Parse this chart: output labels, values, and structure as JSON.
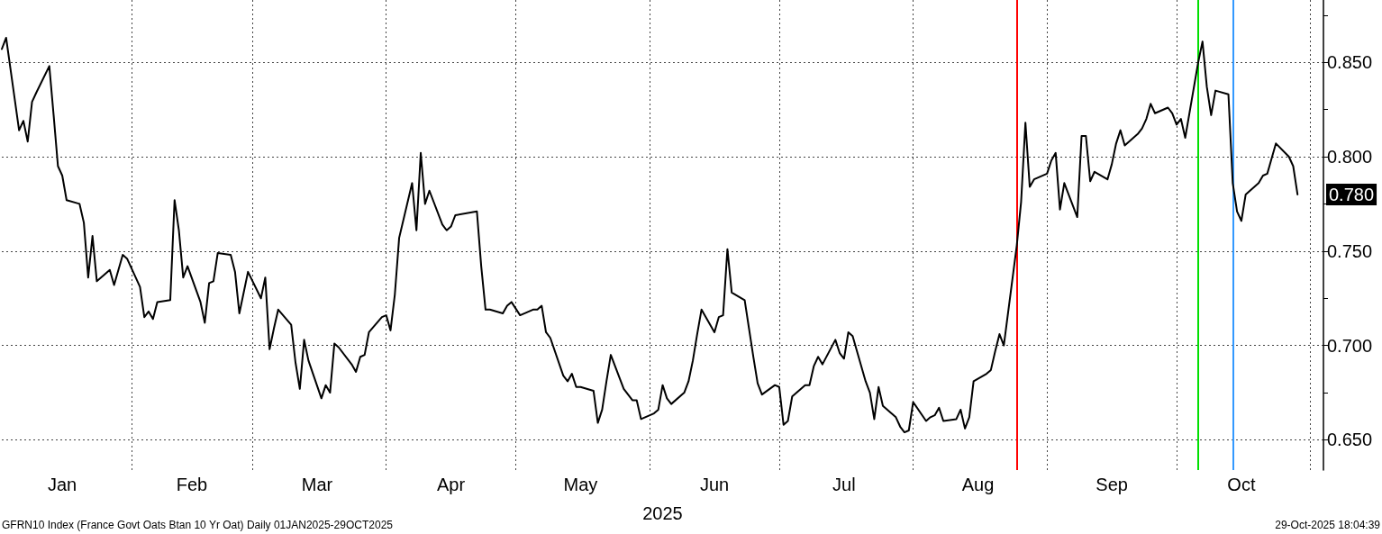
{
  "chart_data": {
    "type": "line",
    "xlabel": "2025",
    "x": [
      "2025-01-02",
      "2025-01-03",
      "2025-01-06",
      "2025-01-07",
      "2025-01-08",
      "2025-01-09",
      "2025-01-10",
      "2025-01-13",
      "2025-01-14",
      "2025-01-15",
      "2025-01-16",
      "2025-01-17",
      "2025-01-20",
      "2025-01-21",
      "2025-01-22",
      "2025-01-23",
      "2025-01-24",
      "2025-01-27",
      "2025-01-28",
      "2025-01-29",
      "2025-01-30",
      "2025-01-31",
      "2025-02-03",
      "2025-02-04",
      "2025-02-05",
      "2025-02-06",
      "2025-02-07",
      "2025-02-10",
      "2025-02-11",
      "2025-02-12",
      "2025-02-13",
      "2025-02-14",
      "2025-02-17",
      "2025-02-18",
      "2025-02-19",
      "2025-02-20",
      "2025-02-21",
      "2025-02-24",
      "2025-02-25",
      "2025-02-26",
      "2025-02-27",
      "2025-02-28",
      "2025-03-03",
      "2025-03-04",
      "2025-03-05",
      "2025-03-06",
      "2025-03-07",
      "2025-03-10",
      "2025-03-11",
      "2025-03-12",
      "2025-03-13",
      "2025-03-14",
      "2025-03-17",
      "2025-03-18",
      "2025-03-19",
      "2025-03-20",
      "2025-03-21",
      "2025-03-24",
      "2025-03-25",
      "2025-03-26",
      "2025-03-27",
      "2025-03-28",
      "2025-03-31",
      "2025-04-01",
      "2025-04-02",
      "2025-04-03",
      "2025-04-04",
      "2025-04-07",
      "2025-04-08",
      "2025-04-09",
      "2025-04-10",
      "2025-04-11",
      "2025-04-14",
      "2025-04-15",
      "2025-04-16",
      "2025-04-17",
      "2025-04-22",
      "2025-04-23",
      "2025-04-24",
      "2025-04-25",
      "2025-04-28",
      "2025-04-29",
      "2025-04-30",
      "2025-05-02",
      "2025-05-05",
      "2025-05-06",
      "2025-05-07",
      "2025-05-08",
      "2025-05-09",
      "2025-05-12",
      "2025-05-13",
      "2025-05-14",
      "2025-05-15",
      "2025-05-16",
      "2025-05-19",
      "2025-05-20",
      "2025-05-21",
      "2025-05-22",
      "2025-05-23",
      "2025-05-26",
      "2025-05-27",
      "2025-05-28",
      "2025-05-29",
      "2025-05-30",
      "2025-06-02",
      "2025-06-03",
      "2025-06-04",
      "2025-06-05",
      "2025-06-06",
      "2025-06-09",
      "2025-06-10",
      "2025-06-11",
      "2025-06-12",
      "2025-06-13",
      "2025-06-16",
      "2025-06-17",
      "2025-06-18",
      "2025-06-19",
      "2025-06-20",
      "2025-06-23",
      "2025-06-24",
      "2025-06-25",
      "2025-06-26",
      "2025-06-27",
      "2025-06-30",
      "2025-07-01",
      "2025-07-02",
      "2025-07-03",
      "2025-07-04",
      "2025-07-07",
      "2025-07-08",
      "2025-07-09",
      "2025-07-10",
      "2025-07-11",
      "2025-07-14",
      "2025-07-15",
      "2025-07-16",
      "2025-07-17",
      "2025-07-18",
      "2025-07-21",
      "2025-07-22",
      "2025-07-23",
      "2025-07-24",
      "2025-07-25",
      "2025-07-28",
      "2025-07-29",
      "2025-07-30",
      "2025-07-31",
      "2025-08-01",
      "2025-08-04",
      "2025-08-05",
      "2025-08-06",
      "2025-08-07",
      "2025-08-08",
      "2025-08-11",
      "2025-08-12",
      "2025-08-13",
      "2025-08-14",
      "2025-08-15",
      "2025-08-18",
      "2025-08-19",
      "2025-08-20",
      "2025-08-21",
      "2025-08-22",
      "2025-08-25",
      "2025-08-26",
      "2025-08-27",
      "2025-08-28",
      "2025-08-29",
      "2025-09-01",
      "2025-09-02",
      "2025-09-03",
      "2025-09-04",
      "2025-09-05",
      "2025-09-08",
      "2025-09-09",
      "2025-09-10",
      "2025-09-11",
      "2025-09-12",
      "2025-09-15",
      "2025-09-16",
      "2025-09-17",
      "2025-09-18",
      "2025-09-19",
      "2025-09-22",
      "2025-09-23",
      "2025-09-24",
      "2025-09-25",
      "2025-09-26",
      "2025-09-29",
      "2025-09-30",
      "2025-10-01",
      "2025-10-02",
      "2025-10-03",
      "2025-10-06",
      "2025-10-07",
      "2025-10-08",
      "2025-10-09",
      "2025-10-10",
      "2025-10-13",
      "2025-10-14",
      "2025-10-15",
      "2025-10-16",
      "2025-10-17",
      "2025-10-20",
      "2025-10-21",
      "2025-10-22",
      "2025-10-23",
      "2025-10-24",
      "2025-10-27",
      "2025-10-28",
      "2025-10-29"
    ],
    "series": [
      {
        "color": "#000000",
        "values": [
          0.857,
          0.863,
          0.814,
          0.819,
          0.808,
          0.829,
          0.834,
          0.848,
          0.822,
          0.795,
          0.79,
          0.777,
          0.775,
          0.765,
          0.736,
          0.758,
          0.734,
          0.74,
          0.732,
          0.74,
          0.748,
          0.746,
          0.731,
          0.715,
          0.718,
          0.714,
          0.723,
          0.724,
          0.777,
          0.761,
          0.736,
          0.742,
          0.723,
          0.712,
          0.733,
          0.734,
          0.749,
          0.748,
          0.739,
          0.717,
          0.728,
          0.739,
          0.725,
          0.736,
          0.698,
          0.709,
          0.719,
          0.711,
          0.691,
          0.677,
          0.703,
          0.692,
          0.672,
          0.679,
          0.675,
          0.701,
          0.699,
          0.69,
          0.686,
          0.694,
          0.695,
          0.707,
          0.715,
          0.716,
          0.708,
          0.727,
          0.757,
          0.786,
          0.761,
          0.802,
          0.775,
          0.782,
          0.764,
          0.761,
          0.763,
          0.769,
          0.771,
          0.742,
          0.719,
          0.719,
          0.717,
          0.721,
          0.723,
          0.716,
          0.719,
          0.719,
          0.721,
          0.707,
          0.704,
          0.684,
          0.681,
          0.685,
          0.678,
          0.678,
          0.676,
          0.659,
          0.666,
          0.681,
          0.695,
          0.677,
          0.674,
          0.671,
          0.671,
          0.661,
          0.664,
          0.666,
          0.679,
          0.672,
          0.669,
          0.675,
          0.681,
          0.692,
          0.706,
          0.719,
          0.707,
          0.715,
          0.716,
          0.751,
          0.728,
          0.724,
          0.709,
          0.694,
          0.68,
          0.674,
          0.679,
          0.678,
          0.658,
          0.66,
          0.673,
          0.679,
          0.679,
          0.689,
          0.694,
          0.69,
          0.703,
          0.696,
          0.693,
          0.707,
          0.705,
          0.681,
          0.675,
          0.661,
          0.678,
          0.668,
          0.662,
          0.657,
          0.654,
          0.655,
          0.67,
          0.66,
          0.662,
          0.663,
          0.667,
          0.66,
          0.661,
          0.666,
          0.656,
          0.662,
          0.681,
          0.685,
          0.687,
          0.697,
          0.706,
          0.7,
          0.753,
          0.776,
          0.818,
          0.784,
          0.788,
          0.791,
          0.798,
          0.802,
          0.772,
          0.786,
          0.768,
          0.811,
          0.811,
          0.787,
          0.792,
          0.788,
          0.796,
          0.807,
          0.814,
          0.806,
          0.812,
          0.815,
          0.82,
          0.828,
          0.823,
          0.826,
          0.823,
          0.817,
          0.82,
          0.81,
          0.85,
          0.861,
          0.837,
          0.822,
          0.835,
          0.833,
          0.786,
          0.771,
          0.766,
          0.78,
          0.786,
          0.79,
          0.791,
          0.799,
          0.807,
          0.8,
          0.795,
          0.78
        ]
      }
    ],
    "xlim": [
      "2025-01-02",
      "2025-11-04"
    ],
    "xticks": [
      {
        "value": "2025-01-16",
        "label": "Jan"
      },
      {
        "value": "2025-02-01",
        "label": null
      },
      {
        "value": "2025-02-15",
        "label": "Feb"
      },
      {
        "value": "2025-03-01",
        "label": null
      },
      {
        "value": "2025-03-16",
        "label": "Mar"
      },
      {
        "value": "2025-04-01",
        "label": null
      },
      {
        "value": "2025-04-16",
        "label": "Apr"
      },
      {
        "value": "2025-05-01",
        "label": null
      },
      {
        "value": "2025-05-16",
        "label": "May"
      },
      {
        "value": "2025-06-01",
        "label": null
      },
      {
        "value": "2025-06-16",
        "label": "Jun"
      },
      {
        "value": "2025-07-01",
        "label": null
      },
      {
        "value": "2025-07-16",
        "label": "Jul"
      },
      {
        "value": "2025-08-01",
        "label": null
      },
      {
        "value": "2025-08-16",
        "label": "Aug"
      },
      {
        "value": "2025-09-01",
        "label": null
      },
      {
        "value": "2025-09-16",
        "label": "Sep"
      },
      {
        "value": "2025-10-01",
        "label": null
      },
      {
        "value": "2025-10-16",
        "label": "Oct"
      },
      {
        "value": "2025-11-01",
        "label": null
      }
    ],
    "ylim": [
      0.634,
      0.883
    ],
    "yticks": [
      {
        "value": 0.65,
        "label": "0.650"
      },
      {
        "value": 0.675,
        "label": null
      },
      {
        "value": 0.7,
        "label": "0.700"
      },
      {
        "value": 0.725,
        "label": null
      },
      {
        "value": 0.75,
        "label": "0.750"
      },
      {
        "value": 0.775,
        "label": null
      },
      {
        "value": 0.8,
        "label": "0.800"
      },
      {
        "value": 0.825,
        "label": null
      },
      {
        "value": 0.85,
        "label": "0.850"
      },
      {
        "value": 0.875,
        "label": null
      }
    ],
    "grid": true,
    "marker": "none",
    "line_style": "solid",
    "ref_lines": [
      {
        "axis": "x",
        "value": "2025-08-25",
        "color": "#ff0000"
      },
      {
        "axis": "x",
        "value": "2025-10-06",
        "color": "#00e000"
      },
      {
        "axis": "x",
        "value": "2025-10-14",
        "color": "#3399ff"
      }
    ],
    "annotations": [
      {
        "text": "0.780",
        "x": "2025-10-29",
        "y": 0.78
      },
      "GFRN10 Index (France Govt Oats Btan 10 Yr Oat) Daily 01JAN2025-29OCT2025",
      "29-Oct-2025 18:04:39"
    ]
  }
}
